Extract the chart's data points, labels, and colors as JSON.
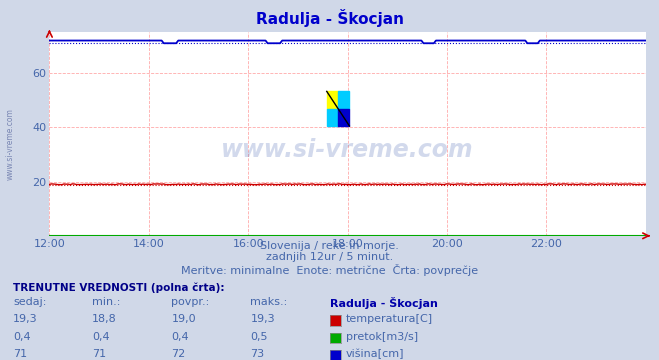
{
  "title": "Radulja - Škocjan",
  "bg_color": "#d0d8e8",
  "plot_bg_color": "#ffffff",
  "xticklabels": [
    "12:00",
    "14:00",
    "16:00",
    "18:00",
    "20:00",
    "22:00"
  ],
  "ylim": [
    0,
    75
  ],
  "yticks": [
    20,
    40,
    60
  ],
  "n_points": 288,
  "temp_value": 19.0,
  "temp_min": 18.8,
  "temp_max": 19.3,
  "pretok_value": 0.4,
  "pretok_min": 0.4,
  "pretok_max": 0.5,
  "visina_value": 72.0,
  "visina_min": 71.0,
  "visina_max": 73.0,
  "temp_color": "#cc0000",
  "pretok_color": "#00aa00",
  "visina_color": "#0000cc",
  "subtitle1": "Slovenija / reke in morje.",
  "subtitle2": "zadnjih 12ur / 5 minut.",
  "subtitle3": "Meritve: minimalne  Enote: metrične  Črta: povprečje",
  "table_header": "TRENUTNE VREDNOSTI (polna črta):",
  "col_sedaj": "sedaj:",
  "col_min": "min.:",
  "col_povpr": "povpr.:",
  "col_maks": "maks.:",
  "station_name": "Radulja - Škocjan",
  "row1_vals": [
    "19,3",
    "18,8",
    "19,0",
    "19,3"
  ],
  "row1_label": "temperatura[C]",
  "row2_vals": [
    "0,4",
    "0,4",
    "0,4",
    "0,5"
  ],
  "row2_label": "pretok[m3/s]",
  "row3_vals": [
    "71",
    "71",
    "72",
    "73"
  ],
  "row3_label": "višina[cm]",
  "watermark": "www.si-vreme.com",
  "left_label": "www.si-vreme.com"
}
